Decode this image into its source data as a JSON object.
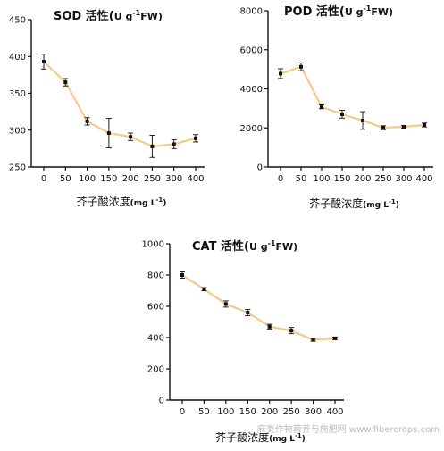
{
  "chart_data": [
    {
      "id": "sod",
      "type": "line",
      "title": {
        "main": "SOD 活性(",
        "unit": "U g",
        "sup": "-1",
        "tail": "FW)"
      },
      "xlabel": {
        "main": "芥子酸浓度",
        "unit": "(mg L",
        "sup": "-1",
        "tail": ")"
      },
      "categories": [
        "0",
        "50",
        "100",
        "150",
        "200",
        "250",
        "300",
        "400"
      ],
      "values": [
        393,
        365,
        312,
        296,
        291,
        278,
        281,
        289
      ],
      "errors": [
        10,
        5,
        5,
        20,
        5,
        15,
        6,
        5
      ],
      "ylim": [
        250,
        450
      ],
      "yticks": [
        250,
        300,
        350,
        400,
        450
      ],
      "line_color": "#f5c98a"
    },
    {
      "id": "pod",
      "type": "line",
      "title": {
        "main": "POD 活性(",
        "unit": "U g",
        "sup": "-1",
        "tail": "FW)"
      },
      "xlabel": {
        "main": "芥子酸浓度",
        "unit": "(mg L",
        "sup": "-1",
        "tail": ")"
      },
      "categories": [
        "0",
        "50",
        "100",
        "150",
        "200",
        "250",
        "300",
        "400"
      ],
      "values": [
        4780,
        5130,
        3080,
        2700,
        2380,
        2010,
        2060,
        2150
      ],
      "errors": [
        250,
        200,
        100,
        200,
        450,
        100,
        60,
        100
      ],
      "ylim": [
        0,
        8000
      ],
      "yticks": [
        0,
        2000,
        4000,
        6000,
        8000
      ],
      "line_color": "#f5c98a"
    },
    {
      "id": "cat",
      "type": "line",
      "title": {
        "main": "CAT 活性(",
        "unit": "U g",
        "sup": "-1",
        "tail": "FW)"
      },
      "xlabel": {
        "main": "芥子酸浓度",
        "unit": "(mg L",
        "sup": "-1",
        "tail": ")"
      },
      "categories": [
        "0",
        "50",
        "100",
        "150",
        "200",
        "250",
        "300",
        "400"
      ],
      "values": [
        800,
        710,
        615,
        560,
        470,
        445,
        385,
        395
      ],
      "errors": [
        20,
        10,
        20,
        20,
        15,
        20,
        8,
        8
      ],
      "ylim": [
        0,
        1000
      ],
      "yticks": [
        0,
        200,
        400,
        600,
        800,
        1000
      ],
      "line_color": "#f5c98a"
    }
  ],
  "watermark": "麻类作物营养与施肥网 www.fibercrops.com"
}
